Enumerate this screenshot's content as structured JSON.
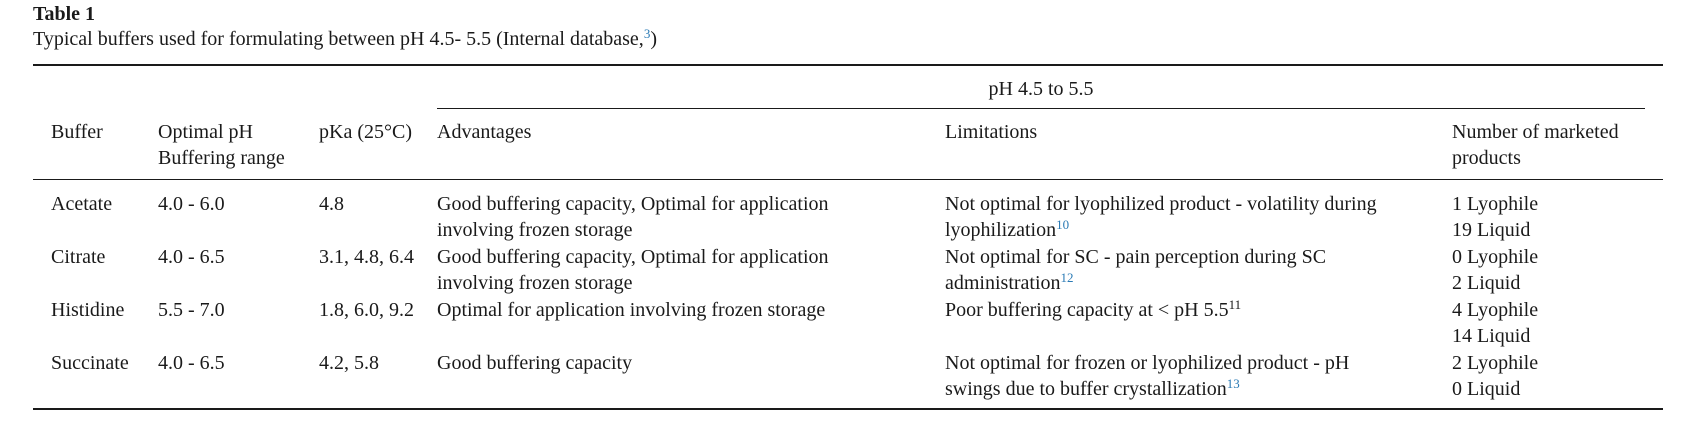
{
  "table": {
    "label": "Table 1",
    "caption_text": "Typical buffers used for formulating between pH 4.5- 5.5 (Internal database,",
    "caption_ref": "3",
    "caption_close": ")",
    "group_header": "pH 4.5 to 5.5",
    "headers": {
      "buffer": "Buffer",
      "optimal_line1": "Optimal pH",
      "optimal_line2": "Buffering range",
      "pka": "pKa (25°C)",
      "advantages": "Advantages",
      "limitations": "Limitations",
      "marketed_line1": "Number of marketed",
      "marketed_line2": "products"
    },
    "rows": [
      {
        "buffer": "Acetate",
        "range": "4.0 - 6.0",
        "pka": "4.8",
        "adv_line1": "Good buffering capacity, Optimal for application",
        "adv_line2": "involving frozen storage",
        "lim_line1": "Not optimal for lyophilized product - volatility during",
        "lim_line2": "lyophilization",
        "lim_ref": "10",
        "products_line1": "1 Lyophile",
        "products_line2": "19 Liquid"
      },
      {
        "buffer": "Citrate",
        "range": "4.0 - 6.5",
        "pka": "3.1, 4.8, 6.4",
        "adv_line1": "Good buffering capacity, Optimal for application",
        "adv_line2": "involving frozen storage",
        "lim_line1": "Not optimal for SC - pain perception during SC",
        "lim_line2": "administration",
        "lim_ref": "12",
        "products_line1": "0 Lyophile",
        "products_line2": "2 Liquid"
      },
      {
        "buffer": "Histidine",
        "range": "5.5 - 7.0",
        "pka": "1.8, 6.0, 9.2",
        "adv_line1": "Optimal for application involving frozen storage",
        "lim_line1": "Poor buffering capacity at < pH 5.5",
        "lim_ref": "11",
        "products_line1": "4 Lyophile",
        "products_line2": "14 Liquid"
      },
      {
        "buffer": "Succinate",
        "range": "4.0 - 6.5",
        "pka": "4.2, 5.8",
        "adv_line1": "Good buffering capacity",
        "lim_line1": "Not optimal for frozen or lyophilized product - pH",
        "lim_line2": "swings due to buffer crystallization",
        "lim_ref": "13",
        "products_line1": "2 Lyophile",
        "products_line2": "0 Liquid"
      }
    ]
  }
}
